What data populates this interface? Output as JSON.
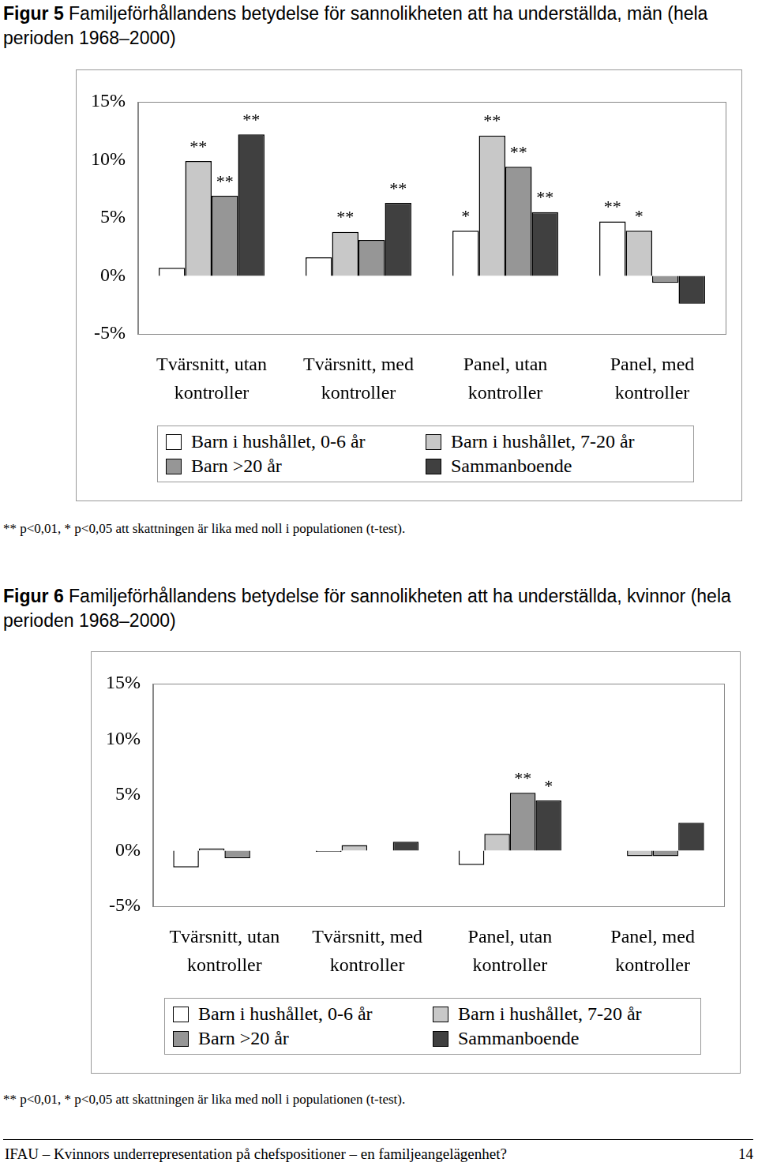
{
  "page": {
    "footer": "IFAU – Kvinnors underrepresentation på chefspositioner – en familjeangelägenhet?",
    "page_number": 14
  },
  "chart_data": [
    {
      "type": "bar",
      "label": "Figur 5",
      "title": "Familjeförhållandens betydelse för sannolikheten att ha underställda, män (hela perioden 1968–2000)",
      "categories": [
        "Tvärsnitt, utan kontroller",
        "Tvärsnitt, med kontroller",
        "Panel, utan kontroller",
        "Panel, med kontroller"
      ],
      "series": [
        {
          "name": "Barn i hushållet, 0-6 år",
          "color": "#ffffff",
          "values": [
            0.7,
            1.6,
            3.9,
            4.7
          ],
          "annotations": [
            null,
            null,
            "*",
            "**"
          ]
        },
        {
          "name": "Barn i hushållet, 7-20 år",
          "color": "#c8c8c8",
          "values": [
            9.9,
            3.8,
            12.1,
            3.9
          ],
          "annotations": [
            "**",
            "**",
            "**",
            "*"
          ]
        },
        {
          "name": "Barn >20 år",
          "color": "#969696",
          "values": [
            6.9,
            3.1,
            9.4,
            -0.6
          ],
          "annotations": [
            "**",
            null,
            "**",
            null
          ]
        },
        {
          "name": "Sammanboende",
          "color": "#404040",
          "values": [
            12.2,
            6.3,
            5.5,
            -2.4
          ],
          "annotations": [
            "**",
            "**",
            "**",
            null
          ]
        }
      ],
      "ylim": [
        -5,
        15
      ],
      "yticks": [
        {
          "value": -5,
          "label": "-5%"
        },
        {
          "value": 0,
          "label": "0%"
        },
        {
          "value": 5,
          "label": "5%"
        },
        {
          "value": 10,
          "label": "10%"
        },
        {
          "value": 15,
          "label": "15%"
        }
      ],
      "grid": false,
      "legend": "bottom",
      "footnote": "** p<0,01, * p<0,05 att skattningen är lika med noll i populationen (t-test)."
    },
    {
      "type": "bar",
      "label": "Figur 6",
      "title": "Familjeförhållandens betydelse för sannolikheten att ha underställda, kvinnor (hela perioden 1968–2000)",
      "categories": [
        "Tvärsnitt, utan kontroller",
        "Tvärsnitt, med kontroller",
        "Panel, utan kontroller",
        "Panel, med kontroller"
      ],
      "series": [
        {
          "name": "Barn i hushållet, 0-6 år",
          "color": "#ffffff",
          "values": [
            -1.5,
            -0.1,
            -1.3,
            0
          ],
          "annotations": [
            null,
            null,
            null,
            null
          ]
        },
        {
          "name": "Barn i hushållet, 7-20 år",
          "color": "#c8c8c8",
          "values": [
            0.2,
            0.5,
            1.5,
            -0.5
          ],
          "annotations": [
            null,
            null,
            null,
            null
          ]
        },
        {
          "name": "Barn >20 år",
          "color": "#969696",
          "values": [
            -0.7,
            0,
            5.2,
            -0.5
          ],
          "annotations": [
            null,
            null,
            "**",
            null
          ]
        },
        {
          "name": "Sammanboende",
          "color": "#404040",
          "values": [
            0,
            0.8,
            4.5,
            2.5
          ],
          "annotations": [
            null,
            null,
            "*",
            null
          ]
        }
      ],
      "ylim": [
        -5,
        15
      ],
      "yticks": [
        {
          "value": -5,
          "label": "-5%"
        },
        {
          "value": 0,
          "label": "0%"
        },
        {
          "value": 5,
          "label": "5%"
        },
        {
          "value": 10,
          "label": "10%"
        },
        {
          "value": 15,
          "label": "15%"
        }
      ],
      "grid": false,
      "legend": "bottom",
      "footnote": "** p<0,01, * p<0,05 att skattningen är lika med noll i populationen (t-test)."
    }
  ]
}
